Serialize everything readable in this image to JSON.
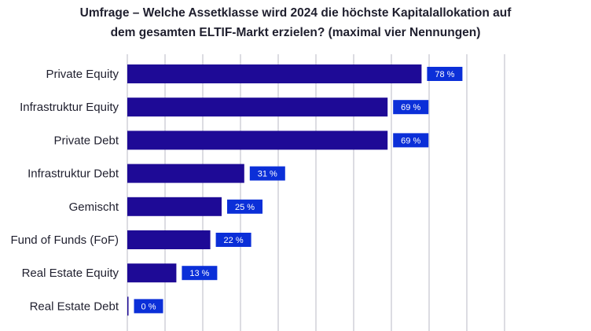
{
  "chart_data": {
    "type": "bar",
    "orientation": "horizontal",
    "title_lines": [
      "Umfrage – Welche Assetklasse wird 2024 die höchste Kapitalallokation auf",
      "dem gesamten ELTIF-Markt erzielen? (maximal vier Nennungen)"
    ],
    "categories": [
      "Private Equity",
      "Infrastruktur Equity",
      "Private Debt",
      "Infrastruktur Debt",
      "Gemischt",
      "Fund of Funds (FoF)",
      "Real Estate Equity",
      "Real Estate Debt"
    ],
    "values": [
      78,
      69,
      69,
      31,
      25,
      22,
      13,
      0
    ],
    "value_labels": [
      "78 %",
      "69 %",
      "69 %",
      "31 %",
      "25 %",
      "22 %",
      "13 %",
      "0 %"
    ],
    "xlim": [
      0,
      100
    ],
    "grid_step": 10,
    "grid": true,
    "xlabel": "",
    "ylabel": "",
    "legend": "none",
    "colors": {
      "bar": "#1e0a96",
      "label_bg": "#0b2fd8",
      "label_text": "#ffffff",
      "grid": "#b9b9c4",
      "text": "#1f1f2e"
    }
  }
}
